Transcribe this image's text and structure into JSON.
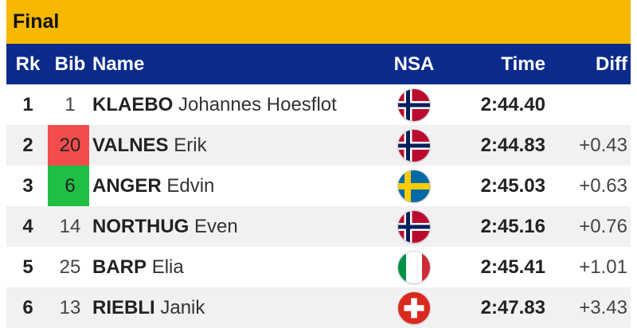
{
  "title": "Final",
  "columns": {
    "rk": "Rk",
    "bib": "Bib",
    "name": "Name",
    "nsa": "NSA",
    "time": "Time",
    "diff": "Diff"
  },
  "colors": {
    "title_bar": "#f7b800",
    "header": "#0b2b8c",
    "bib_highlight_red": "#f24d4d",
    "bib_highlight_green": "#1fbf44"
  },
  "results": [
    {
      "rank": "1",
      "bib": "1",
      "surname": "KLAEBO",
      "given": "Johannes Hoesflot",
      "nsa_flag": "norway-flag-icon",
      "time": "2:44.40",
      "diff": "",
      "bib_highlight": ""
    },
    {
      "rank": "2",
      "bib": "20",
      "surname": "VALNES",
      "given": "Erik",
      "nsa_flag": "norway-flag-icon",
      "time": "2:44.83",
      "diff": "+0.43",
      "bib_highlight": "red"
    },
    {
      "rank": "3",
      "bib": "6",
      "surname": "ANGER",
      "given": "Edvin",
      "nsa_flag": "sweden-flag-icon",
      "time": "2:45.03",
      "diff": "+0.63",
      "bib_highlight": "green"
    },
    {
      "rank": "4",
      "bib": "14",
      "surname": "NORTHUG",
      "given": "Even",
      "nsa_flag": "norway-flag-icon",
      "time": "2:45.16",
      "diff": "+0.76",
      "bib_highlight": ""
    },
    {
      "rank": "5",
      "bib": "25",
      "surname": "BARP",
      "given": "Elia",
      "nsa_flag": "italy-flag-icon",
      "time": "2:45.41",
      "diff": "+1.01",
      "bib_highlight": ""
    },
    {
      "rank": "6",
      "bib": "13",
      "surname": "RIEBLI",
      "given": "Janik",
      "nsa_flag": "switzerland-flag-icon",
      "time": "2:47.83",
      "diff": "+3.43",
      "bib_highlight": ""
    }
  ]
}
